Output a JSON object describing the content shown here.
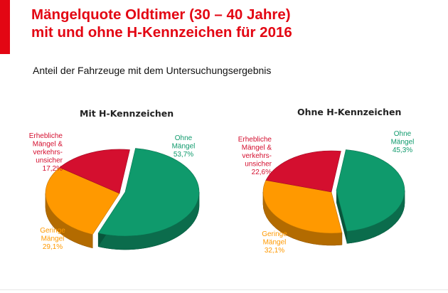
{
  "header": {
    "title_line1": "Mängelquote Oldtimer (30 – 40 Jahre)",
    "title_line2": "mit und ohne H-Kennzeichen für 2016",
    "subtitle": "Anteil der Fahrzeuge mit dem Untersuchungsergebnis"
  },
  "colors": {
    "accent": "#e30613",
    "green": "#0f9a6c",
    "orange": "#ff9900",
    "red": "#d40f2f"
  },
  "chart_data": [
    {
      "type": "pie",
      "title": "Mit H-Kennzeichen",
      "slices": [
        {
          "name": "Ohne Mängel",
          "value": 53.7,
          "label_lines": [
            "Ohne",
            "Mängel",
            "53,7%"
          ],
          "color": "#0f9a6c"
        },
        {
          "name": "Geringe Mängel",
          "value": 29.1,
          "label_lines": [
            "Geringe",
            "Mängel",
            "29,1%"
          ],
          "color": "#ff9900"
        },
        {
          "name": "Erhebliche Mängel & verkehrsunsicher",
          "value": 17.2,
          "label_lines": [
            "Erhebliche",
            "Mängel &",
            "verkehrs-",
            "unsicher",
            "17,2%"
          ],
          "color": "#d40f2f"
        }
      ]
    },
    {
      "type": "pie",
      "title": "Ohne H-Kennzeichen",
      "slices": [
        {
          "name": "Ohne Mängel",
          "value": 45.3,
          "label_lines": [
            "Ohne",
            "Mängel",
            "45,3%"
          ],
          "color": "#0f9a6c"
        },
        {
          "name": "Geringe Mängel",
          "value": 32.1,
          "label_lines": [
            "Geringe",
            "Mängel",
            "32,1%"
          ],
          "color": "#ff9900"
        },
        {
          "name": "Erhebliche Mängel & verkehrsunsicher",
          "value": 22.6,
          "label_lines": [
            "Erhebliche",
            "Mängel &",
            "verkehrs-",
            "unsicher",
            "22,6%"
          ],
          "color": "#d40f2f"
        }
      ]
    }
  ]
}
